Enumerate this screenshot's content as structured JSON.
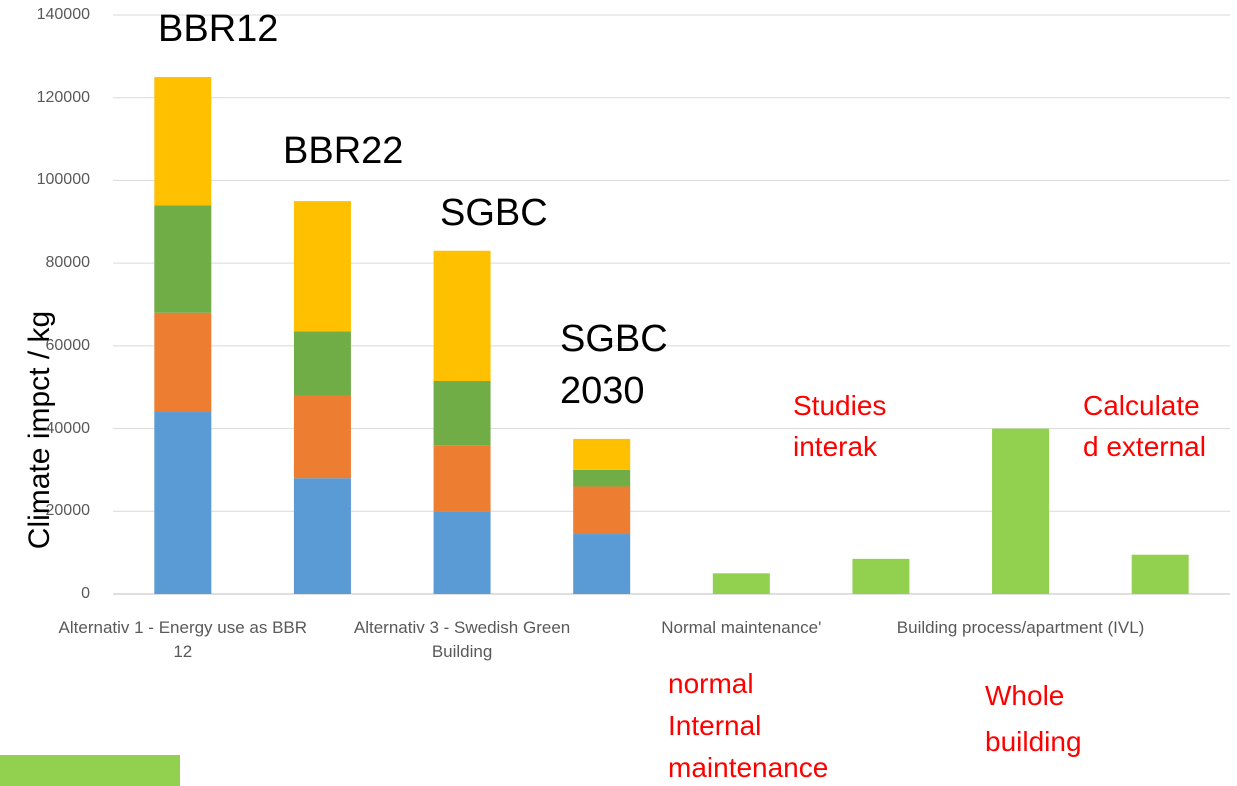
{
  "chart_data": {
    "type": "stacked_bar",
    "y_label": "Climate impct / kg",
    "categories": [
      "Alternativ 1 - Energy use as BBR 12",
      null,
      "Alternativ 3 - Swedish Green Building",
      null,
      "Normal maintenance'",
      null,
      "Building process/apartment (IVL)",
      null
    ],
    "series": [
      {
        "color": "#5b9bd5",
        "values": [
          44000,
          28000,
          20000,
          14500,
          null,
          null,
          null,
          null
        ]
      },
      {
        "color": "#ed7d31",
        "values": [
          24000,
          20000,
          16000,
          11500,
          null,
          null,
          null,
          null
        ]
      },
      {
        "color": "#70ad47",
        "values": [
          26000,
          15500,
          15500,
          4000,
          null,
          null,
          null,
          null
        ]
      },
      {
        "color": "#ffc000",
        "values": [
          31000,
          31500,
          31500,
          7500,
          null,
          null,
          null,
          null
        ]
      },
      {
        "color": "#92d050",
        "values": [
          null,
          null,
          null,
          null,
          5000,
          8500,
          40000,
          9500
        ]
      }
    ],
    "ylim": [
      0,
      140000
    ],
    "yticks": [
      0,
      20000,
      40000,
      60000,
      80000,
      100000,
      120000,
      140000
    ],
    "grid": true,
    "annotations": [
      {
        "lines": [
          "BBR12"
        ],
        "color": "#000000"
      },
      {
        "lines": [
          "BBR22"
        ],
        "color": "#000000"
      },
      {
        "lines": [
          "SGBC"
        ],
        "color": "#000000"
      },
      {
        "lines": [
          "SGBC",
          "2030"
        ],
        "color": "#000000"
      },
      {
        "lines": [
          "Studies",
          "interak"
        ],
        "color": "#ff0000"
      },
      {
        "lines": [
          "Calculate",
          "d external"
        ],
        "color": "#ff0000"
      },
      {
        "lines": [
          "normal",
          "Internal",
          "maintenance"
        ],
        "color": "#ff0000"
      },
      {
        "lines": [
          "Whole",
          "building"
        ],
        "color": "#ff0000"
      }
    ]
  }
}
